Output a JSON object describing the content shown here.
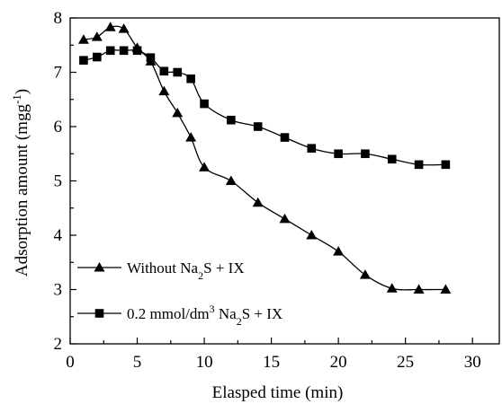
{
  "chart_data": {
    "type": "line",
    "xlabel": "Elasped time (min)",
    "ylabel": "Adsorption amount (mgg",
    "ylabel_sup": "-1",
    "ylabel_close": ")",
    "xlim": [
      0,
      32
    ],
    "ylim": [
      2,
      8
    ],
    "xticks": [
      0,
      5,
      10,
      15,
      20,
      25,
      30
    ],
    "yticks": [
      2,
      3,
      4,
      5,
      6,
      7,
      8
    ],
    "grid": false,
    "legend_position": "bottom-left",
    "series": [
      {
        "legend_prefix": "Without Na",
        "legend_sub": "2",
        "legend_suffix": "S + IX",
        "marker": "triangle",
        "color": "#000000",
        "x": [
          1,
          2,
          3,
          4,
          5,
          6,
          7,
          8,
          9,
          10,
          12,
          14,
          16,
          18,
          20,
          22,
          24,
          26,
          28
        ],
        "y": [
          7.6,
          7.65,
          7.83,
          7.8,
          7.45,
          7.2,
          6.65,
          6.25,
          5.8,
          5.25,
          5.0,
          4.6,
          4.3,
          4.0,
          3.7,
          3.27,
          3.02,
          3.0,
          3.0
        ]
      },
      {
        "legend_prefix": "0.2 mmol/dm",
        "legend_sup": "3",
        "legend_mid": " Na",
        "legend_sub": "2",
        "legend_suffix": "S + IX",
        "marker": "square",
        "color": "#000000",
        "x": [
          1,
          2,
          3,
          4,
          5,
          6,
          7,
          8,
          9,
          10,
          12,
          14,
          16,
          18,
          20,
          22,
          24,
          26,
          28
        ],
        "y": [
          7.22,
          7.28,
          7.4,
          7.4,
          7.4,
          7.27,
          7.02,
          7.0,
          6.88,
          6.42,
          6.12,
          6.0,
          5.8,
          5.6,
          5.5,
          5.5,
          5.4,
          5.3,
          5.3
        ]
      }
    ]
  }
}
